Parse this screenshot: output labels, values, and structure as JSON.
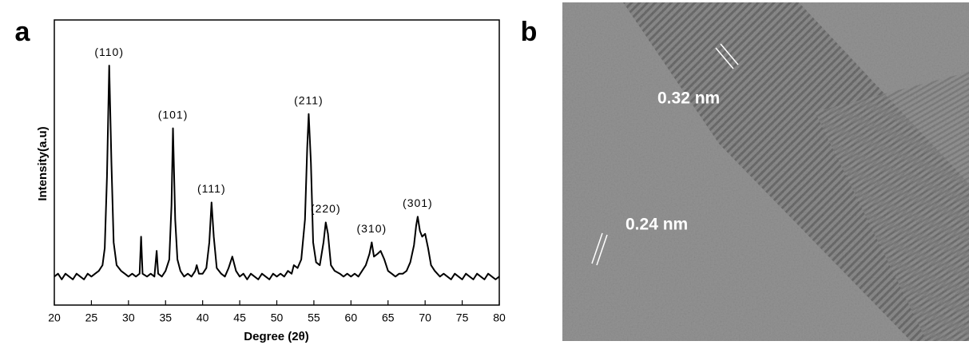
{
  "panel_labels": [
    "a",
    "b"
  ],
  "chart_data": {
    "type": "line",
    "xlabel": "Degree (2θ)",
    "ylabel": "Intensity(a.u)",
    "xlim": [
      20,
      80
    ],
    "xticks": [
      20,
      25,
      30,
      35,
      40,
      45,
      50,
      55,
      60,
      65,
      70,
      75,
      80
    ],
    "ylim": [
      0,
      100
    ],
    "color": "#000000",
    "x": [
      20,
      20.5,
      21,
      21.5,
      22,
      22.5,
      23,
      23.5,
      24,
      24.5,
      25,
      25.5,
      26,
      26.5,
      26.8,
      27.1,
      27.4,
      27.7,
      28.0,
      28.4,
      29,
      29.5,
      30,
      30.5,
      31,
      31.5,
      31.7,
      31.9,
      32.5,
      33,
      33.5,
      33.8,
      34,
      34.5,
      35,
      35.5,
      35.8,
      36.0,
      36.3,
      36.6,
      37,
      37.5,
      38,
      38.5,
      39,
      39.2,
      39.5,
      40,
      40.5,
      40.9,
      41.2,
      41.5,
      41.9,
      42.5,
      43,
      43.5,
      44,
      44.5,
      45,
      45.5,
      46,
      46.5,
      47,
      47.5,
      48,
      48.5,
      49,
      49.5,
      50,
      50.5,
      51,
      51.5,
      52,
      52.3,
      52.8,
      53.3,
      53.8,
      54.1,
      54.3,
      54.6,
      54.9,
      55.3,
      55.8,
      56.3,
      56.6,
      56.9,
      57.3,
      57.8,
      58.5,
      59,
      59.5,
      60,
      60.5,
      61,
      61.5,
      62,
      62.5,
      62.8,
      63.1,
      63.6,
      64,
      64.5,
      65,
      65.5,
      66,
      66.5,
      67,
      67.5,
      68,
      68.5,
      68.8,
      69.0,
      69.3,
      69.6,
      70,
      70.4,
      70.8,
      71.3,
      72,
      72.5,
      73,
      73.5,
      74,
      74.5,
      75,
      75.5,
      76,
      76.5,
      77,
      77.5,
      78,
      78.5,
      79,
      79.5,
      80
    ],
    "values": [
      10,
      11,
      9,
      11,
      10,
      9,
      11,
      10,
      9,
      11,
      10,
      11,
      12,
      14,
      20,
      45,
      84,
      50,
      22,
      14,
      12,
      11,
      10,
      11,
      10,
      11,
      24,
      11,
      10,
      11,
      10,
      19,
      11,
      10,
      12,
      16,
      35,
      62,
      30,
      16,
      12,
      10,
      11,
      10,
      12,
      14,
      11,
      11,
      13,
      22,
      36,
      24,
      13,
      11,
      10,
      13,
      17,
      12,
      10,
      11,
      9,
      11,
      10,
      9,
      11,
      10,
      9,
      11,
      10,
      11,
      10,
      12,
      11,
      14,
      13,
      16,
      30,
      55,
      67,
      50,
      22,
      15,
      14,
      22,
      29,
      25,
      14,
      12,
      11,
      10,
      11,
      10,
      11,
      10,
      12,
      14,
      18,
      22,
      17,
      18,
      19,
      16,
      12,
      11,
      10,
      11,
      11,
      12,
      15,
      21,
      28,
      31,
      26,
      24,
      25,
      20,
      14,
      12,
      10,
      11,
      10,
      9,
      11,
      10,
      9,
      11,
      10,
      9,
      11,
      10,
      9,
      11,
      10,
      9,
      10
    ],
    "annotations": [
      {
        "label": "(110)",
        "x": 27.4
      },
      {
        "label": "(101)",
        "x": 36.0
      },
      {
        "label": "(111)",
        "x": 41.2
      },
      {
        "label": "(211)",
        "x": 54.3
      },
      {
        "label": "(220)",
        "x": 56.6
      },
      {
        "label": "(310)",
        "x": 62.8
      },
      {
        "label": "(301)",
        "x": 69.0
      }
    ]
  },
  "image": {
    "annotations": [
      "0.32 nm",
      "0.24 nm"
    ]
  }
}
